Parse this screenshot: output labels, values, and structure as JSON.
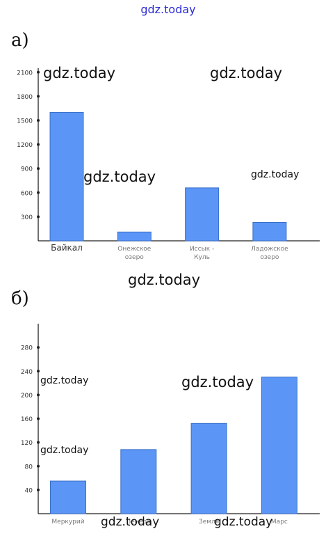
{
  "header": {
    "site": "gdz.today"
  },
  "watermarks": [
    "gdz.today",
    "gdz.today",
    "gdz.today",
    "gdz.today",
    "gdz.today",
    "gdz.today",
    "gdz.today",
    "gdz.today",
    "gdz.today",
    "gdz.today"
  ],
  "colors": {
    "bar": "#5b96f7",
    "bar_edge": "#3a6fc8",
    "site": "#2a2ad6",
    "axis": "#222222"
  },
  "chart_data": [
    {
      "panel_label": "а)",
      "type": "bar",
      "categories": [
        [
          "Байкал"
        ],
        [
          "Онежское",
          "озеро"
        ],
        [
          "Иссык -",
          "Куль"
        ],
        [
          "Ладожское",
          "озеро"
        ]
      ],
      "values": [
        1600,
        110,
        660,
        230
      ],
      "yticks": [
        300,
        600,
        900,
        1200,
        1500,
        1800,
        2100
      ],
      "ylim": [
        0,
        2150
      ],
      "grid": false
    },
    {
      "panel_label": "б)",
      "type": "bar",
      "categories": [
        [
          "Меркурий"
        ],
        [
          "Венера"
        ],
        [
          "Земля"
        ],
        [
          "Марс"
        ]
      ],
      "values": [
        55,
        108,
        152,
        230
      ],
      "yticks": [
        40,
        80,
        120,
        160,
        200,
        240,
        280
      ],
      "ylim": [
        0,
        320
      ],
      "grid": false
    }
  ]
}
